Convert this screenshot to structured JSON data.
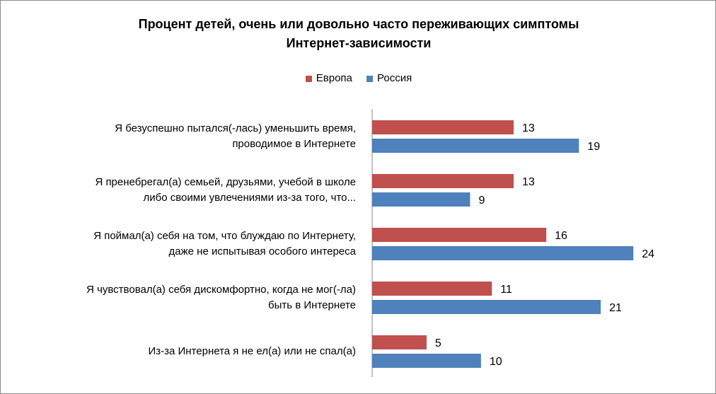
{
  "chart_data": {
    "type": "bar",
    "orientation": "horizontal",
    "title_lines": [
      "Процент детей, очень или довольно часто переживающих симптомы",
      "Интернет-зависимости"
    ],
    "categories": [
      [
        "Я безуспешно пытался(-лась) уменьшить время,",
        "проводимое в Интернете"
      ],
      [
        "Я пренебрегал(а) семьей, друзьями, учебой в школе",
        "либо своими увлечениями из-за того, что..."
      ],
      [
        "Я поймал(а) себя на том, что блуждаю по Интернету,",
        "даже не испытывая особого интереса"
      ],
      [
        "Я чувствовал(а) себя дискомфортно, когда не мог(-ла)",
        "быть в Интернете"
      ],
      [
        "Из-за Интернета я не ел(а) или не спал(а)"
      ]
    ],
    "series": [
      {
        "name": "Европа",
        "color": "#C0504D",
        "values": [
          13,
          13,
          16,
          11,
          5
        ]
      },
      {
        "name": "Россия",
        "color": "#4F81BD",
        "values": [
          19,
          9,
          24,
          21,
          10
        ]
      }
    ],
    "xlim": [
      0,
      30
    ],
    "grid": false,
    "legend_position": "top"
  }
}
